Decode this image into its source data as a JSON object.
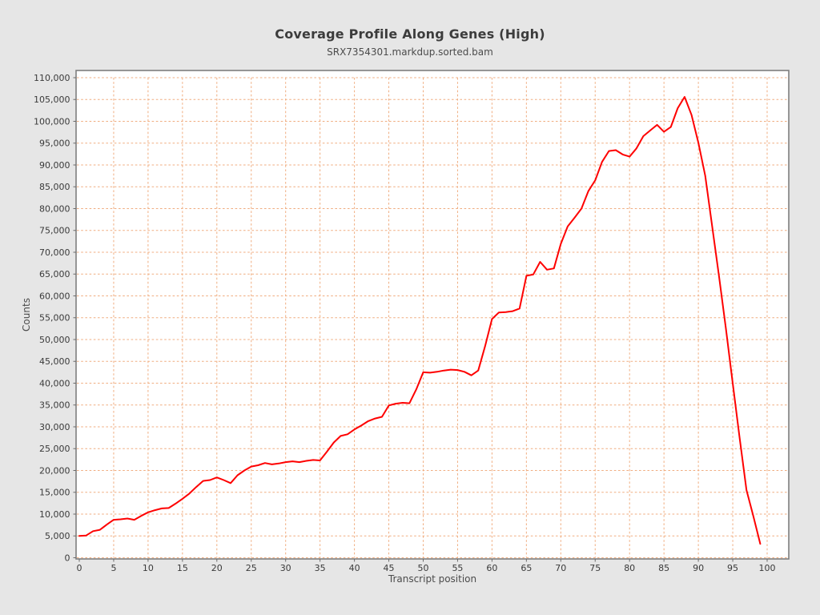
{
  "panel": {
    "background": "#e6e6e6"
  },
  "chart_data": {
    "type": "line",
    "title": "Coverage Profile Along Genes (High)",
    "subtitle": "SRX7354301.markdup.sorted.bam",
    "xlabel": "Transcript position",
    "ylabel": "Counts",
    "legend": "none",
    "grid": true,
    "grid_style": "dashed",
    "xlim": [
      0,
      100
    ],
    "ylim": [
      0,
      110000
    ],
    "x_ticks": [
      0,
      5,
      10,
      15,
      20,
      25,
      30,
      35,
      40,
      45,
      50,
      55,
      60,
      65,
      70,
      75,
      80,
      85,
      90,
      95,
      100
    ],
    "y_ticks": [
      0,
      5000,
      10000,
      15000,
      20000,
      25000,
      30000,
      35000,
      40000,
      45000,
      50000,
      55000,
      60000,
      65000,
      70000,
      75000,
      80000,
      85000,
      90000,
      95000,
      100000,
      105000,
      110000
    ],
    "x": [
      0,
      1,
      2,
      3,
      4,
      5,
      6,
      7,
      8,
      9,
      10,
      11,
      12,
      13,
      14,
      15,
      16,
      17,
      18,
      19,
      20,
      21,
      22,
      23,
      24,
      25,
      26,
      27,
      28,
      29,
      30,
      31,
      32,
      33,
      34,
      35,
      36,
      37,
      38,
      39,
      40,
      41,
      42,
      43,
      44,
      45,
      46,
      47,
      48,
      49,
      50,
      51,
      52,
      53,
      54,
      55,
      56,
      57,
      58,
      59,
      60,
      61,
      62,
      63,
      64,
      65,
      66,
      67,
      68,
      69,
      70,
      71,
      72,
      73,
      74,
      75,
      76,
      77,
      78,
      79,
      80,
      81,
      82,
      83,
      84,
      85,
      86,
      87,
      88,
      89,
      90,
      91,
      92,
      93,
      94,
      95,
      96,
      97,
      98,
      99
    ],
    "values": [
      5000,
      5100,
      6100,
      6400,
      7600,
      8700,
      8800,
      9000,
      8700,
      9600,
      10400,
      10900,
      11300,
      11400,
      12400,
      13500,
      14700,
      16200,
      17600,
      17800,
      18400,
      17800,
      17100,
      18900,
      20000,
      20900,
      21200,
      21700,
      21400,
      21600,
      21900,
      22100,
      21900,
      22200,
      22400,
      22300,
      24300,
      26400,
      27900,
      28300,
      29400,
      30300,
      31300,
      31900,
      32300,
      34900,
      35300,
      35500,
      35400,
      38600,
      42500,
      42400,
      42600,
      42900,
      43100,
      43000,
      42600,
      41800,
      42900,
      48500,
      54700,
      56200,
      56300,
      56500,
      57100,
      64600,
      64900,
      67800,
      66000,
      66300,
      71900,
      75900,
      77900,
      80000,
      84000,
      86500,
      90700,
      93200,
      93400,
      92400,
      91900,
      93800,
      96600,
      97900,
      99200,
      97600,
      98700,
      103000,
      105600,
      101500,
      95100,
      87500,
      76000,
      64500,
      52500,
      40000,
      27500,
      15500,
      9500,
      3200
    ],
    "colors": {
      "line": "#fe0000",
      "grid": "#f0ad80",
      "plot_background": "#ffffff",
      "panel_background": "#e6e6e6",
      "plot_border": "#7f7f7f",
      "tick_mark": "#6b6b6b",
      "tick_text": "#3a3a3a",
      "axis_label_text": "#4b4b4b",
      "title_text": "#3c3c3c"
    }
  }
}
